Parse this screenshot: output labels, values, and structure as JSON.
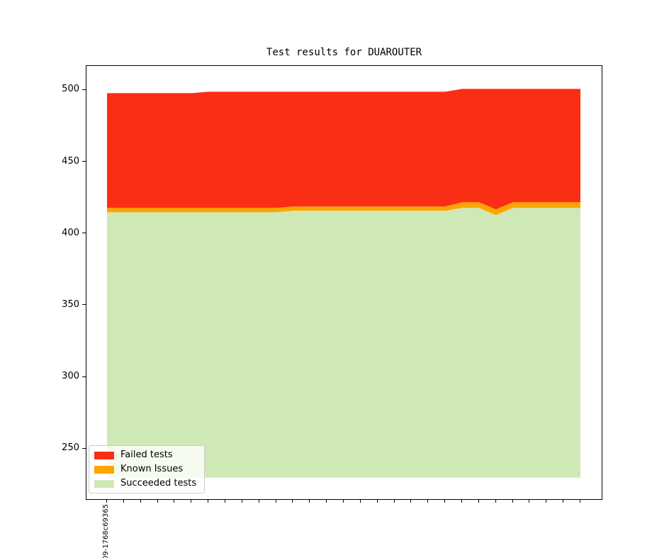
{
  "chart_data": {
    "type": "area",
    "title": "Test results for DUAROUTER",
    "xlabel": "",
    "ylabel": "",
    "n_points": 29,
    "x_first_tick_label": "09-1768c69365",
    "yticks": [
      250,
      300,
      350,
      400,
      450,
      500
    ],
    "ylim": [
      215,
      517
    ],
    "baseline": 230,
    "grid": false,
    "legend_position": "lower-left",
    "series": [
      {
        "name": "Succeeded tests",
        "color": "#cfe9b6",
        "values": [
          415,
          415,
          415,
          415,
          415,
          415,
          415,
          415,
          415,
          415,
          415,
          416,
          416,
          416,
          416,
          416,
          416,
          416,
          416,
          416,
          416,
          418,
          418,
          413,
          418,
          418,
          418,
          418,
          418
        ]
      },
      {
        "name": "Known Issues",
        "color": "#ffa500",
        "values": [
          3,
          3,
          3,
          3,
          3,
          3,
          3,
          3,
          3,
          3,
          3,
          3,
          3,
          3,
          3,
          3,
          3,
          3,
          3,
          3,
          3,
          4,
          4,
          4,
          4,
          4,
          4,
          4,
          4
        ]
      },
      {
        "name": "Failed tests",
        "color": "#fa2e14",
        "values": [
          80,
          80,
          80,
          80,
          80,
          80,
          81,
          81,
          81,
          81,
          81,
          80,
          80,
          80,
          80,
          80,
          80,
          80,
          80,
          80,
          80,
          79,
          79,
          84,
          79,
          79,
          79,
          79,
          79
        ]
      }
    ],
    "legend": {
      "items": [
        {
          "label": "Failed tests",
          "color": "#fa2e14"
        },
        {
          "label": "Known Issues",
          "color": "#ffa500"
        },
        {
          "label": "Succeeded tests",
          "color": "#cfe9b6"
        }
      ]
    }
  }
}
